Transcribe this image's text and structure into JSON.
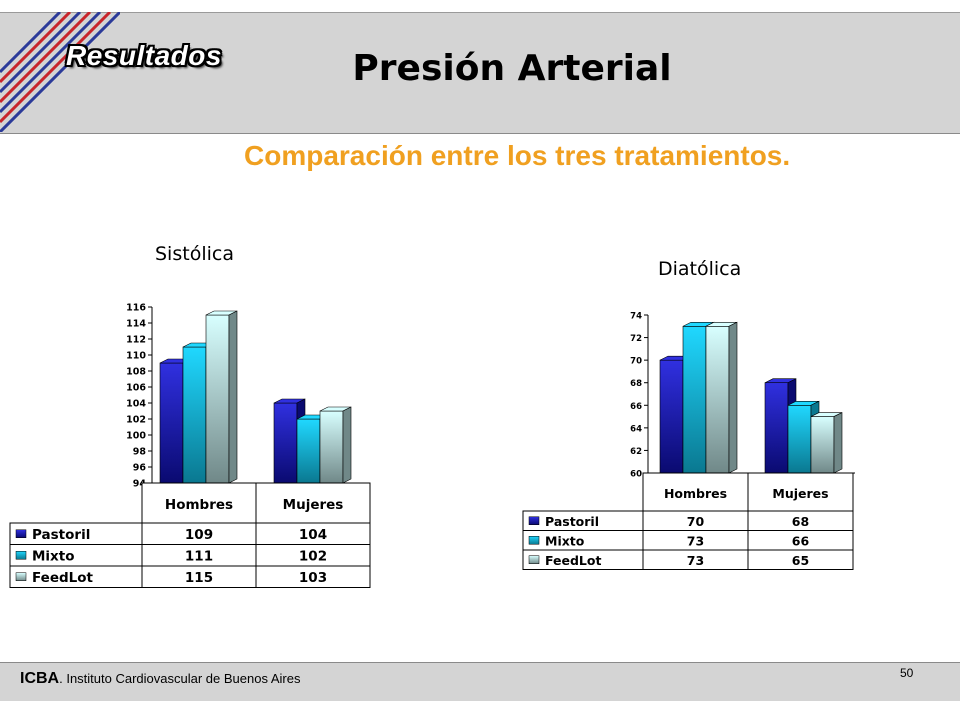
{
  "slide": {
    "section_label": "Resultados",
    "title": "Presión Arterial",
    "subtitle": "Comparación entre los tres tratamientos.",
    "footer_org_short": "ICBA",
    "footer_org_full": ". Instituto Cardiovascular de Buenos Aires",
    "page_number": "50"
  },
  "colors": {
    "header_band": "#d4d4d4",
    "subtitle": "#f0a020",
    "series": [
      "#1a1ab0",
      "#0fb6e8",
      "#b8f0f4"
    ]
  },
  "chart_data": [
    {
      "type": "bar",
      "title": "Sistólica",
      "categories": [
        "Hombres",
        "Mujeres"
      ],
      "series": [
        {
          "name": "Pastoril",
          "values": [
            109,
            104
          ]
        },
        {
          "name": "Mixto",
          "values": [
            111,
            102
          ]
        },
        {
          "name": "FeedLot",
          "values": [
            115,
            103
          ]
        }
      ],
      "ylim": [
        94,
        116
      ],
      "yticks": [
        94,
        96,
        98,
        100,
        102,
        104,
        106,
        108,
        110,
        112,
        114,
        116
      ],
      "data_table": true
    },
    {
      "type": "bar",
      "title": "Diatólica",
      "categories": [
        "Hombres",
        "Mujeres"
      ],
      "series": [
        {
          "name": "Pastoril",
          "values": [
            70,
            68
          ]
        },
        {
          "name": "Mixto",
          "values": [
            73,
            66
          ]
        },
        {
          "name": "FeedLot",
          "values": [
            73,
            65
          ]
        }
      ],
      "ylim": [
        60,
        74
      ],
      "yticks": [
        60,
        62,
        64,
        66,
        68,
        70,
        72,
        74
      ],
      "data_table": true
    }
  ]
}
